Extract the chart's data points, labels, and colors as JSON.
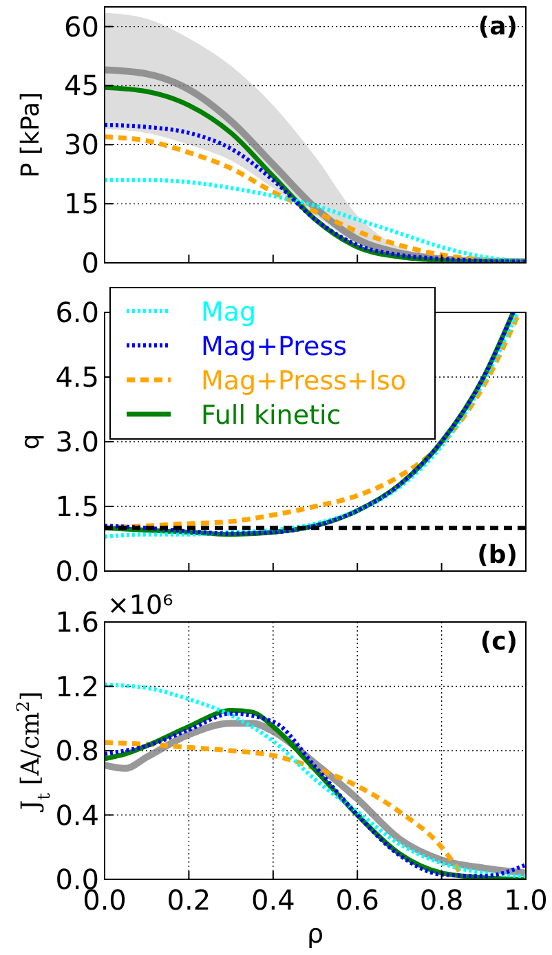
{
  "chart_data": [
    {
      "type": "line",
      "title": "(a)",
      "ylabel": "P [kPa]",
      "xlim": [
        0,
        1
      ],
      "ylim": [
        0,
        65
      ],
      "xticks": [
        {
          "value": 0,
          "label": null
        },
        {
          "value": 0.2,
          "label": null
        },
        {
          "value": 0.4,
          "label": null
        },
        {
          "value": 0.6,
          "label": null
        },
        {
          "value": 0.8,
          "label": null
        },
        {
          "value": 1,
          "label": null
        }
      ],
      "yticks": [
        0,
        15,
        30,
        45,
        60
      ],
      "tick_labels": "y",
      "grid": "y",
      "x": [
        0,
        0.1,
        0.2,
        0.3,
        0.4,
        0.5,
        0.6,
        0.7,
        0.8,
        0.9,
        1
      ],
      "series": [
        {
          "color": "#808080",
          "line_style": "solid",
          "values": [
            49,
            48,
            44,
            36,
            25,
            14,
            6,
            2.5,
            1,
            0.5,
            0.3
          ],
          "lower": [
            34,
            33,
            30,
            26,
            19,
            12,
            5,
            2,
            0.8,
            0.3,
            0.2
          ],
          "upper": [
            63.5,
            62,
            57,
            50,
            40,
            27,
            12,
            4,
            1.5,
            0.5,
            0.3
          ]
        },
        {
          "color": "#00ffff",
          "line_style": "dotted",
          "values": [
            21,
            21,
            20.5,
            19,
            17,
            14.5,
            11,
            7.5,
            4,
            1.5,
            0.3
          ]
        },
        {
          "color": "#0000ff",
          "line_style": "dotted",
          "values": [
            35,
            34.5,
            33,
            29,
            21,
            11,
            4.5,
            2,
            1,
            0.5,
            0.3
          ]
        },
        {
          "color": "#ffa500",
          "line_style": "dashed",
          "values": [
            32,
            31,
            28,
            24,
            18,
            13,
            8,
            4.5,
            2,
            0.8,
            0.3
          ]
        },
        {
          "color": "#008000",
          "line_style": "solid",
          "values": [
            44.5,
            43.5,
            40,
            33,
            22,
            11,
            4,
            1.5,
            0.6,
            0.3,
            0.2
          ]
        }
      ]
    },
    {
      "type": "line",
      "title": "(b)",
      "ylabel": "q",
      "xlim": [
        0,
        1
      ],
      "ylim": [
        0,
        6
      ],
      "xticks": [
        {
          "value": 0,
          "label": null
        },
        {
          "value": 0.2,
          "label": null
        },
        {
          "value": 0.4,
          "label": null
        },
        {
          "value": 0.6,
          "label": null
        },
        {
          "value": 0.8,
          "label": null
        },
        {
          "value": 1,
          "label": null
        }
      ],
      "yticks": [
        {
          "value": 0,
          "label": "0.0"
        },
        1.5,
        {
          "value": 3,
          "label": "3.0"
        },
        4.5,
        {
          "value": 6,
          "label": "6.0"
        }
      ],
      "tick_labels": "y",
      "grid": "y",
      "legend": "top left",
      "ref_lines": [
        {
          "axis": "y",
          "value": 1,
          "color": "#000000",
          "line_style": "dashed"
        }
      ],
      "series": [
        {
          "name": "Mag",
          "color": "#00ffff",
          "line_style": "dotted",
          "x": [
            0,
            0.1,
            0.2,
            0.3,
            0.4,
            0.5,
            0.6,
            0.7,
            0.8,
            0.9,
            0.98
          ],
          "values": [
            0.8,
            0.85,
            0.85,
            0.9,
            0.95,
            1.1,
            1.4,
            1.95,
            2.9,
            4.4,
            6
          ]
        },
        {
          "name": "Mag+Press",
          "color": "#0000ff",
          "line_style": "dotted",
          "x": [
            0,
            0.1,
            0.2,
            0.3,
            0.4,
            0.5,
            0.6,
            0.7,
            0.8,
            0.9,
            0.97
          ],
          "values": [
            1.05,
            1,
            0.92,
            0.87,
            0.9,
            1.05,
            1.4,
            2,
            3,
            4.5,
            6
          ]
        },
        {
          "name": "Mag+Press+Iso",
          "color": "#ffa500",
          "line_style": "dashed",
          "x": [
            0,
            0.1,
            0.2,
            0.3,
            0.4,
            0.5,
            0.6,
            0.7,
            0.8,
            0.9,
            0.98
          ],
          "values": [
            1,
            1.05,
            1.1,
            1.15,
            1.3,
            1.5,
            1.75,
            2.2,
            2.95,
            4.3,
            5.9
          ]
        },
        {
          "name": "Full kinetic",
          "color": "#008000",
          "line_style": "solid",
          "x": [
            0,
            0.1,
            0.2,
            0.3,
            0.4,
            0.5,
            0.6,
            0.7,
            0.8,
            0.9,
            0.97
          ],
          "values": [
            1,
            0.95,
            0.9,
            0.85,
            0.9,
            1.05,
            1.4,
            2,
            3,
            4.5,
            6
          ]
        }
      ]
    },
    {
      "type": "line",
      "title": "(c)",
      "xlabel": "ρ",
      "ylabel": "J$_{t}$ [A/cm$^{2}$]",
      "annotations": [
        "×10⁶"
      ],
      "xlim": [
        0,
        1
      ],
      "ylim": [
        0,
        1.6
      ],
      "xticks": [
        {
          "value": 0,
          "label": "0.0"
        },
        0.2,
        0.4,
        0.6,
        0.8,
        {
          "value": 1,
          "label": "1.0"
        }
      ],
      "yticks": [
        {
          "value": 0,
          "label": "0.0"
        },
        0.4,
        0.8,
        1.2,
        1.6
      ],
      "grid": true,
      "series": [
        {
          "color": "#808080",
          "line_style": "solid",
          "x": [
            0,
            0.05,
            0.1,
            0.2,
            0.3,
            0.35,
            0.4,
            0.5,
            0.6,
            0.7,
            0.8,
            0.9,
            1
          ],
          "values": [
            0.71,
            0.69,
            0.76,
            0.9,
            0.97,
            0.97,
            0.92,
            0.72,
            0.5,
            0.25,
            0.12,
            0.07,
            0.04
          ]
        },
        {
          "color": "#00ffff",
          "line_style": "dotted",
          "x": [
            0,
            0.1,
            0.2,
            0.3,
            0.4,
            0.5,
            0.6,
            0.7,
            0.8,
            0.9,
            1
          ],
          "values": [
            1.21,
            1.19,
            1.12,
            1.02,
            0.86,
            0.62,
            0.42,
            0.22,
            0.1,
            0.04,
            0.02
          ]
        },
        {
          "color": "#0000ff",
          "line_style": "dotted",
          "x": [
            0,
            0.1,
            0.2,
            0.3,
            0.4,
            0.5,
            0.6,
            0.7,
            0.8,
            0.9,
            1
          ],
          "values": [
            0.78,
            0.83,
            0.93,
            1.03,
            0.98,
            0.7,
            0.4,
            0.15,
            0.03,
            0.02,
            0.09
          ]
        },
        {
          "color": "#ffa500",
          "line_style": "dashed",
          "x": [
            0,
            0.1,
            0.2,
            0.3,
            0.4,
            0.5,
            0.6,
            0.7,
            0.8,
            0.85
          ],
          "values": [
            0.85,
            0.84,
            0.82,
            0.8,
            0.77,
            0.69,
            0.58,
            0.42,
            0.2,
            0.02
          ]
        },
        {
          "color": "#008000",
          "line_style": "solid",
          "x": [
            0,
            0.05,
            0.1,
            0.2,
            0.3,
            0.35,
            0.4,
            0.5,
            0.6,
            0.7,
            0.8,
            0.9,
            1
          ],
          "values": [
            0.75,
            0.78,
            0.83,
            0.95,
            1.05,
            1.04,
            0.95,
            0.68,
            0.4,
            0.16,
            0.04,
            0.01,
            0
          ]
        }
      ]
    }
  ]
}
